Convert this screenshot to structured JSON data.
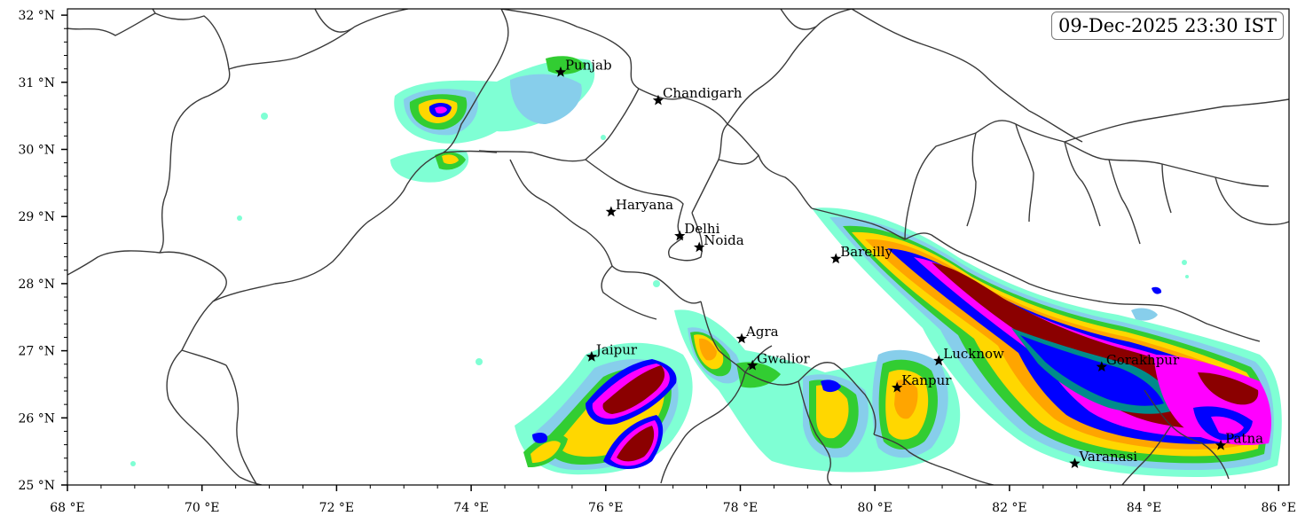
{
  "timestamp": "09-Dec-2025 23:30 IST",
  "axes": {
    "lon_min": 68,
    "lon_max": 86.2,
    "lat_min": 25,
    "lat_max": 32.1,
    "x_ticks": [
      {
        "value": 68,
        "label": "68 °E"
      },
      {
        "value": 70,
        "label": "70 °E"
      },
      {
        "value": 72,
        "label": "72 °E"
      },
      {
        "value": 74,
        "label": "74 °E"
      },
      {
        "value": 76,
        "label": "76 °E"
      },
      {
        "value": 78,
        "label": "78 °E"
      },
      {
        "value": 80,
        "label": "80 °E"
      },
      {
        "value": 82,
        "label": "82 °E"
      },
      {
        "value": 84,
        "label": "84 °E"
      },
      {
        "value": 86,
        "label": "86 °E"
      }
    ],
    "y_ticks": [
      {
        "value": 25,
        "label": "25 °N"
      },
      {
        "value": 26,
        "label": "26 °N"
      },
      {
        "value": 27,
        "label": "27 °N"
      },
      {
        "value": 28,
        "label": "28 °N"
      },
      {
        "value": 29,
        "label": "29 °N"
      },
      {
        "value": 30,
        "label": "30 °N"
      },
      {
        "value": 31,
        "label": "31 °N"
      },
      {
        "value": 32,
        "label": "32 °N"
      }
    ]
  },
  "cities": [
    {
      "name": "Punjab",
      "lon": 75.33,
      "lat": 31.15
    },
    {
      "name": "Chandigarh",
      "lon": 76.78,
      "lat": 30.73
    },
    {
      "name": "Haryana",
      "lon": 76.08,
      "lat": 29.07
    },
    {
      "name": "Delhi",
      "lon": 77.1,
      "lat": 28.71
    },
    {
      "name": "Noida",
      "lon": 77.39,
      "lat": 28.54
    },
    {
      "name": "Bareilly",
      "lon": 79.42,
      "lat": 28.37
    },
    {
      "name": "Agra",
      "lon": 78.02,
      "lat": 27.18
    },
    {
      "name": "Jaipur",
      "lon": 75.79,
      "lat": 26.91
    },
    {
      "name": "Gwalior",
      "lon": 78.18,
      "lat": 26.78
    },
    {
      "name": "Lucknow",
      "lon": 80.95,
      "lat": 26.85
    },
    {
      "name": "Gorakhpur",
      "lon": 83.37,
      "lat": 26.76
    },
    {
      "name": "Kanpur",
      "lon": 80.33,
      "lat": 26.45
    },
    {
      "name": "Varanasi",
      "lon": 82.97,
      "lat": 25.32
    },
    {
      "name": "Patna",
      "lon": 85.14,
      "lat": 25.59
    }
  ],
  "intensity_colors": [
    "#7fffd4",
    "#87ceeb",
    "#32cd32",
    "#ffd700",
    "#ffa500",
    "#0000ff",
    "#008b8b",
    "#ff00ff",
    "#8b0000"
  ],
  "boundary_color": "#3a3a3a"
}
